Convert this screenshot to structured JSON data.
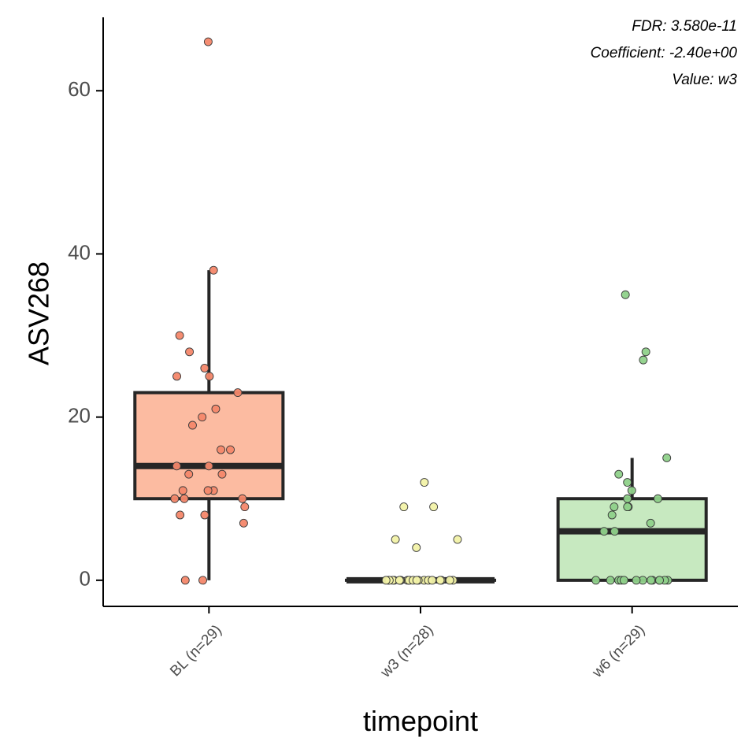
{
  "chart_data": {
    "type": "boxplot",
    "title": "",
    "xlabel": "timepoint",
    "ylabel": "ASV268",
    "ylim": [
      -3.2,
      69
    ],
    "yticks": [
      0,
      20,
      40,
      60
    ],
    "grid": false,
    "legend": "none",
    "annotations": [
      "FDR: 3.580e-11",
      "Coefficient: -2.40e+00",
      "Value: w3"
    ],
    "groups": [
      {
        "label": "BL (n=29)",
        "fill": "#fcbba1",
        "point_color": "#f4876a",
        "box": {
          "min": 0,
          "q1": 10,
          "median": 14,
          "q3": 23,
          "max": 38
        },
        "points": [
          66,
          38,
          30,
          28,
          26,
          25,
          25,
          23,
          21,
          20,
          19,
          16,
          16,
          14,
          14,
          13,
          13,
          11,
          11,
          11,
          10,
          10,
          10,
          9,
          8,
          8,
          7,
          0,
          0
        ]
      },
      {
        "label": "w3 (n=28)",
        "fill": "#ffffcc",
        "point_color": "#f2f2a8",
        "box": {
          "min": 0,
          "q1": 0,
          "median": 0,
          "q3": 0,
          "max": 0
        },
        "points": [
          12,
          9,
          9,
          5,
          5,
          4,
          0,
          0,
          0,
          0,
          0,
          0,
          0,
          0,
          0,
          0,
          0,
          0,
          0,
          0,
          0,
          0,
          0,
          0,
          0,
          0,
          0,
          0
        ]
      },
      {
        "label": "w6 (n=29)",
        "fill": "#c7e9c0",
        "point_color": "#8fd18a",
        "box": {
          "min": 0,
          "q1": 0,
          "median": 6,
          "q3": 10,
          "max": 15
        },
        "points": [
          35,
          28,
          27,
          15,
          13,
          12,
          11,
          10,
          10,
          9,
          9,
          9,
          8,
          7,
          6,
          6,
          0,
          0,
          0,
          0,
          0,
          0,
          0,
          0,
          0,
          0,
          0,
          0,
          0
        ]
      }
    ]
  }
}
